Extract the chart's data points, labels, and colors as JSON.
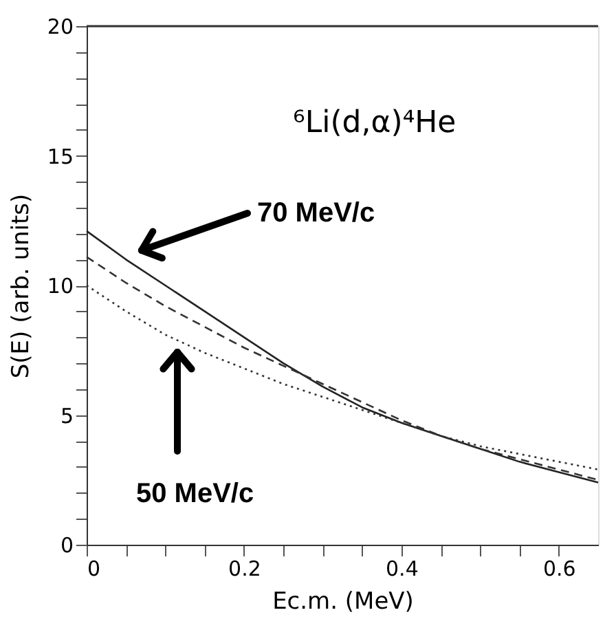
{
  "chart_data": {
    "type": "line",
    "xlabel": "Ec.m.  (MeV)",
    "ylabel": "S(E)  (arb. units)",
    "xlim": [
      0,
      0.65
    ],
    "ylim": [
      0,
      20
    ],
    "xticks": [
      0,
      {
        "value": 0.05,
        "label": null
      },
      {
        "value": 0.1,
        "label": null
      },
      {
        "value": 0.15,
        "label": null
      },
      0.2,
      {
        "value": 0.25,
        "label": null
      },
      {
        "value": 0.3,
        "label": null
      },
      {
        "value": 0.35,
        "label": null
      },
      0.4,
      {
        "value": 0.45,
        "label": null
      },
      {
        "value": 0.5,
        "label": null
      },
      {
        "value": 0.55,
        "label": null
      },
      0.6
    ],
    "yticks": [
      0,
      {
        "value": 1,
        "label": null
      },
      {
        "value": 2,
        "label": null
      },
      {
        "value": 3,
        "label": null
      },
      {
        "value": 4,
        "label": null
      },
      5,
      {
        "value": 6,
        "label": null
      },
      {
        "value": 7,
        "label": null
      },
      {
        "value": 8,
        "label": null
      },
      {
        "value": 9,
        "label": null
      },
      10,
      {
        "value": 11,
        "label": null
      },
      {
        "value": 12,
        "label": null
      },
      {
        "value": 13,
        "label": null
      },
      {
        "value": 14,
        "label": null
      },
      15,
      {
        "value": 16,
        "label": null
      },
      {
        "value": 17,
        "label": null
      },
      {
        "value": 18,
        "label": null
      },
      {
        "value": 19,
        "label": null
      },
      20
    ],
    "x": [
      0,
      0.05,
      0.1,
      0.15,
      0.2,
      0.25,
      0.3,
      0.35,
      0.4,
      0.45,
      0.5,
      0.55,
      0.6,
      0.65
    ],
    "series": [
      {
        "color": "#222222",
        "line_style": "solid",
        "values": [
          12.1,
          11.0,
          10.0,
          9.0,
          8.0,
          7.0,
          6.1,
          5.3,
          4.7,
          4.2,
          3.7,
          3.2,
          2.8,
          2.4
        ]
      },
      {
        "color": "#333333",
        "line_style": "dashed",
        "values": [
          11.1,
          10.1,
          9.2,
          8.4,
          7.6,
          6.9,
          6.2,
          5.5,
          4.8,
          4.2,
          3.7,
          3.3,
          2.9,
          2.5
        ]
      },
      {
        "color": "#333333",
        "line_style": "dotted",
        "values": [
          10.0,
          9.0,
          8.1,
          7.4,
          6.8,
          6.2,
          5.7,
          5.2,
          4.7,
          4.2,
          3.8,
          3.5,
          3.2,
          2.9
        ]
      }
    ],
    "annotations": [
      "⁶Li(d,α)⁴He",
      "70 MeV/c",
      "50 MeV/c"
    ],
    "grid": false,
    "marker": "none"
  }
}
